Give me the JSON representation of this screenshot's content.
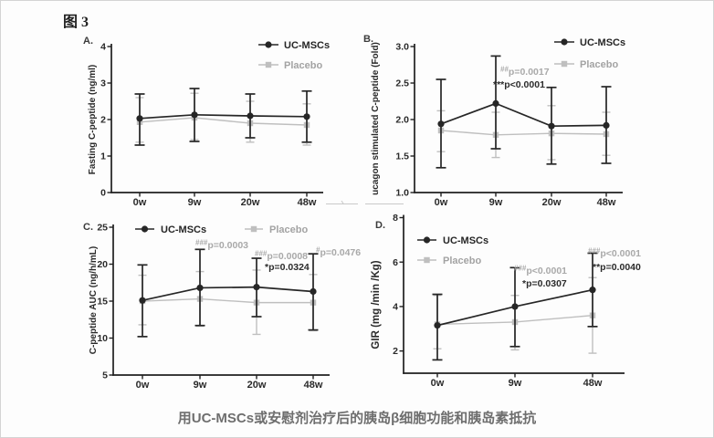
{
  "figure": {
    "title": "图 3",
    "caption": "用UC-MSCs或安慰剂治疗后的胰岛β细胞功能和胰岛素抵抗"
  },
  "colors": {
    "axis": "#1f1f1f",
    "tick_text": "#2a2a2a",
    "panel_label": "#3b3b3b",
    "annotation_gray": "#a9a9a9",
    "annotation_black": "#2b2b2b",
    "caption_text": "#6e6e6e",
    "series": {
      "UC-MSCs": {
        "line": "#262626",
        "text": "#262626"
      },
      "Placebo": {
        "line": "#bfbfbf",
        "text": "#a3a3a3"
      }
    }
  },
  "chart_data": [
    {
      "id": "A",
      "type": "line",
      "panel_label": "A.",
      "ylabel": "Fasting C-peptide (ng/ml)",
      "xlabel": "",
      "ylim": [
        0,
        4
      ],
      "yticks": [
        0,
        1,
        2,
        3,
        4
      ],
      "ytick_labels": [
        "0",
        "1",
        "2",
        "3",
        "4"
      ],
      "categories": [
        "0w",
        "9w",
        "20w",
        "48w"
      ],
      "grid": false,
      "legend_position": "top-right-stacked",
      "series": [
        {
          "name": "UC-MSCs",
          "marker": "circle",
          "values": [
            2.03,
            2.13,
            2.1,
            2.08
          ],
          "err_lo": [
            1.3,
            1.4,
            1.5,
            1.38
          ],
          "err_hi": [
            2.7,
            2.85,
            2.7,
            2.78
          ]
        },
        {
          "name": "Placebo",
          "marker": "square",
          "values": [
            1.93,
            2.05,
            1.9,
            1.85
          ],
          "err_lo": [
            1.38,
            1.45,
            1.38,
            1.3
          ],
          "err_hi": [
            2.6,
            2.72,
            2.5,
            2.43
          ]
        }
      ],
      "annotations": []
    },
    {
      "id": "B",
      "type": "line",
      "panel_label": "B.",
      "ylabel": "ucagon stimulated C-peptide (Fold)",
      "xlabel": "",
      "ylim": [
        1.0,
        3.0
      ],
      "yticks": [
        1.0,
        1.5,
        2.0,
        2.5,
        3.0
      ],
      "ytick_labels": [
        "1.0",
        "1.5",
        "2.0",
        "2.5",
        "3.0"
      ],
      "categories": [
        "0w",
        "9w",
        "20w",
        "48w"
      ],
      "grid": false,
      "legend_position": "top-right-stacked",
      "series": [
        {
          "name": "UC-MSCs",
          "marker": "circle",
          "values": [
            1.94,
            2.22,
            1.91,
            1.92
          ],
          "err_lo": [
            1.34,
            1.6,
            1.39,
            1.4
          ],
          "err_hi": [
            2.55,
            2.87,
            2.44,
            2.45
          ]
        },
        {
          "name": "Placebo",
          "marker": "square",
          "values": [
            1.85,
            1.79,
            1.81,
            1.8
          ],
          "err_lo": [
            1.56,
            1.48,
            1.45,
            1.51
          ],
          "err_hi": [
            2.12,
            2.1,
            2.19,
            2.1
          ]
        }
      ],
      "annotations": [
        {
          "sup": "##",
          "main": "p=0.0017",
          "tone": "gray"
        },
        {
          "sup": "",
          "main": "***p<0.0001",
          "tone": "black"
        }
      ]
    },
    {
      "id": "C",
      "type": "line",
      "panel_label": "C.",
      "ylabel": "C-peptide AUC (ng/h/mL)",
      "xlabel": "",
      "ylim": [
        5,
        25
      ],
      "yticks": [
        5,
        10,
        15,
        20,
        25
      ],
      "ytick_labels": [
        "5",
        "10",
        "15",
        "20",
        "25"
      ],
      "categories": [
        "0w",
        "9w",
        "20w",
        "48w"
      ],
      "grid": false,
      "legend_position": "top-row",
      "series": [
        {
          "name": "UC-MSCs",
          "marker": "circle",
          "values": [
            15.1,
            16.8,
            16.9,
            16.3
          ],
          "err_lo": [
            10.2,
            11.7,
            12.9,
            11.1
          ],
          "err_hi": [
            19.9,
            22.0,
            20.8,
            21.4
          ]
        },
        {
          "name": "Placebo",
          "marker": "square",
          "values": [
            15.0,
            15.3,
            14.8,
            14.8
          ],
          "err_lo": [
            11.8,
            11.6,
            10.5,
            11.0
          ],
          "err_hi": [
            18.5,
            19.0,
            19.2,
            18.6
          ]
        }
      ],
      "annotations": [
        {
          "sup": "###",
          "main": "p=0.0003",
          "tone": "gray"
        },
        {
          "sup": "###",
          "main": "p=0.0008",
          "tone": "gray"
        },
        {
          "sup": "",
          "main": "*p=0.0324",
          "tone": "black"
        },
        {
          "sup": "#",
          "main": "p=0.0476",
          "tone": "gray"
        }
      ]
    },
    {
      "id": "D",
      "type": "line",
      "panel_label": "D.",
      "ylabel": "GIR (mg /min /Kg)",
      "xlabel": "",
      "ylim": [
        1,
        8
      ],
      "yticks": [
        2,
        4,
        6,
        8
      ],
      "ytick_labels": [
        "2",
        "4",
        "6",
        "8"
      ],
      "categories": [
        "0w",
        "9w",
        "48w"
      ],
      "grid": false,
      "legend_position": "top-left-stacked",
      "series": [
        {
          "name": "UC-MSCs",
          "marker": "circle",
          "values": [
            3.15,
            4.0,
            4.75
          ],
          "err_lo": [
            1.6,
            2.2,
            3.1
          ],
          "err_hi": [
            4.55,
            5.75,
            6.4
          ]
        },
        {
          "name": "Placebo",
          "marker": "square",
          "values": [
            3.2,
            3.3,
            3.6
          ],
          "err_lo": [
            2.1,
            2.05,
            1.9
          ],
          "err_hi": [
            4.5,
            4.5,
            5.3
          ]
        }
      ],
      "annotations": [
        {
          "sup": "###",
          "main": "p<0.0001",
          "tone": "gray"
        },
        {
          "sup": "",
          "main": "*p=0.0307",
          "tone": "black"
        },
        {
          "sup": "###",
          "main": "p<0.0001",
          "tone": "gray"
        },
        {
          "sup": "",
          "main": "**p=0.0040",
          "tone": "black"
        }
      ]
    }
  ]
}
